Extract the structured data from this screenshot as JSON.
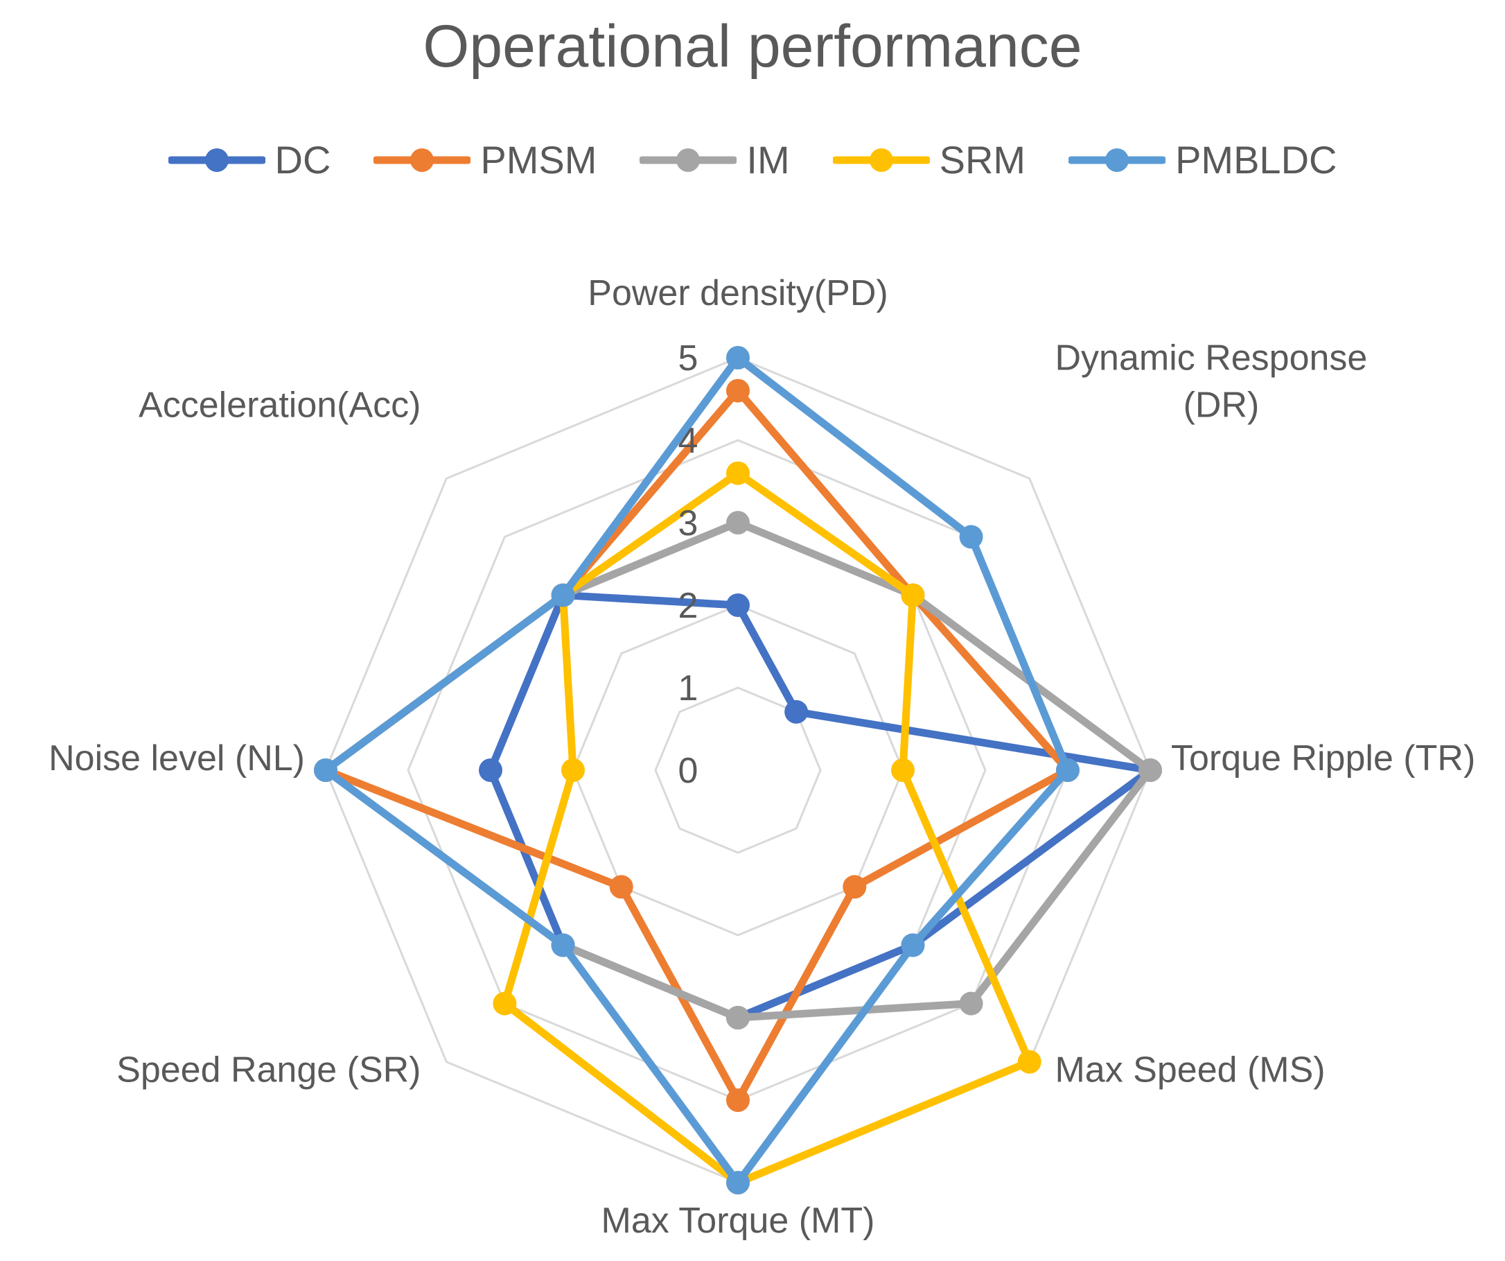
{
  "chart_data": {
    "type": "radar",
    "title": "Operational performance",
    "axes": [
      "Power density(PD)",
      "Dynamic Response (DR)",
      "Torque Ripple (TR)",
      "Max Speed (MS)",
      "Max Torque (MT)",
      "Speed Range (SR)",
      "Noise level (NL)",
      "Acceleration(Acc)"
    ],
    "axis_label_lines": [
      [
        "Power density(PD)"
      ],
      [
        "Dynamic Response",
        "(DR)"
      ],
      [
        "Torque Ripple (TR)"
      ],
      [
        "Max Speed (MS)"
      ],
      [
        "Max Torque (MT)"
      ],
      [
        "Speed Range (SR)"
      ],
      [
        "Noise level (NL)"
      ],
      [
        "Acceleration(Acc)"
      ]
    ],
    "r_range": [
      0,
      5
    ],
    "ticks": [
      "0",
      "1",
      "2",
      "3",
      "4",
      "5"
    ],
    "grid": true,
    "legend_position": "top",
    "series": [
      {
        "name": "DC",
        "color": "#4472C4",
        "values": [
          2,
          1,
          5,
          3,
          3,
          3,
          3,
          3
        ]
      },
      {
        "name": "PMSM",
        "color": "#ED7D31",
        "values": [
          4.6,
          3,
          4,
          2,
          4,
          2,
          5,
          3
        ]
      },
      {
        "name": "IM",
        "color": "#A5A5A5",
        "values": [
          3,
          3,
          5,
          4,
          3,
          3,
          5,
          3
        ]
      },
      {
        "name": "SRM",
        "color": "#FFC000",
        "values": [
          3.6,
          3,
          2,
          5,
          5,
          4,
          2,
          3
        ]
      },
      {
        "name": "PMBLDC",
        "color": "#5B9BD5",
        "values": [
          5,
          4,
          4,
          3,
          5,
          3,
          5,
          3
        ]
      }
    ]
  }
}
